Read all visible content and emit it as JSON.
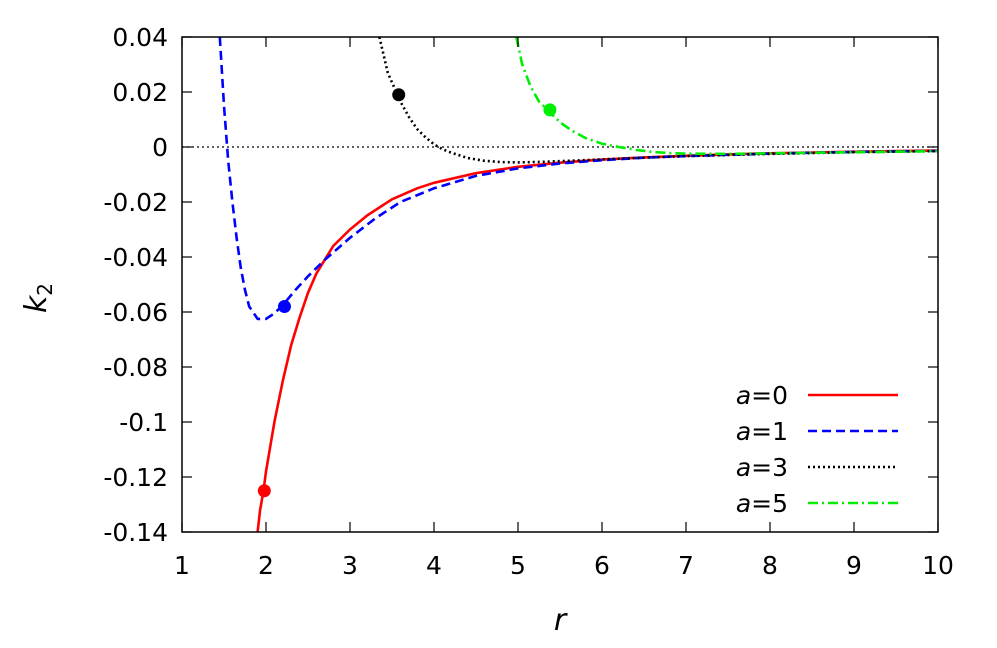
{
  "chart_data": {
    "type": "line",
    "xlabel": "r",
    "ylabel": "k",
    "ylabel_sub": "2",
    "xlim": [
      1,
      10
    ],
    "ylim": [
      -0.14,
      0.04
    ],
    "xticks": [
      "1",
      "2",
      "3",
      "4",
      "5",
      "6",
      "7",
      "8",
      "9",
      "10"
    ],
    "yticks": [
      "0.04",
      "0.02",
      "0",
      "-0.02",
      "-0.04",
      "-0.06",
      "-0.08",
      "-0.1",
      "-0.12",
      "-0.14"
    ],
    "grid": false,
    "legend_position": "bottom-right",
    "zero_line": true,
    "series": [
      {
        "name": "=0",
        "legend_param": "a",
        "color": "#ff0000",
        "dash": "solid",
        "x": [
          1.9,
          1.93,
          1.97,
          2.0,
          2.05,
          2.1,
          2.2,
          2.3,
          2.4,
          2.5,
          2.6,
          2.8,
          3.0,
          3.2,
          3.5,
          3.8,
          4.0,
          4.5,
          5.0,
          5.5,
          6.0,
          6.5,
          7.0,
          7.5,
          8.0,
          8.5,
          9.0,
          9.5,
          10.0
        ],
        "y": [
          -0.14,
          -0.132,
          -0.125,
          -0.118,
          -0.109,
          -0.1,
          -0.085,
          -0.072,
          -0.062,
          -0.053,
          -0.046,
          -0.036,
          -0.03,
          -0.025,
          -0.019,
          -0.015,
          -0.013,
          -0.0095,
          -0.0072,
          -0.0057,
          -0.0046,
          -0.0038,
          -0.0032,
          -0.0027,
          -0.0023,
          -0.002,
          -0.0017,
          -0.0015,
          -0.0013
        ],
        "marker": {
          "x": 1.98,
          "y": -0.125
        }
      },
      {
        "name": "=1",
        "legend_param": "a",
        "color": "#0000ff",
        "dash": "dashed",
        "x": [
          1.45,
          1.5,
          1.55,
          1.6,
          1.65,
          1.7,
          1.75,
          1.8,
          1.9,
          2.0,
          2.1,
          2.2,
          2.35,
          2.5,
          2.7,
          3.0,
          3.3,
          3.6,
          4.0,
          4.5,
          5.0,
          5.5,
          6.0,
          6.5,
          7.0,
          8.0,
          9.0,
          10.0
        ],
        "y": [
          0.04,
          0.015,
          -0.005,
          -0.02,
          -0.033,
          -0.044,
          -0.052,
          -0.058,
          -0.0625,
          -0.0625,
          -0.0605,
          -0.0575,
          -0.052,
          -0.047,
          -0.041,
          -0.033,
          -0.026,
          -0.02,
          -0.015,
          -0.0105,
          -0.0078,
          -0.006,
          -0.0048,
          -0.0039,
          -0.0033,
          -0.0024,
          -0.0018,
          -0.0014
        ],
        "marker": {
          "x": 2.22,
          "y": -0.058
        }
      },
      {
        "name": "=3",
        "legend_param": "a",
        "color": "#000000",
        "dash": "dotted",
        "x": [
          3.35,
          3.45,
          3.55,
          3.6,
          3.7,
          3.8,
          3.9,
          4.0,
          4.1,
          4.2,
          4.4,
          4.6,
          4.8,
          5.0,
          5.3,
          5.6,
          6.0,
          6.5,
          7.0,
          8.0,
          9.0,
          10.0
        ],
        "y": [
          0.04,
          0.027,
          0.02,
          0.0165,
          0.011,
          0.0065,
          0.0035,
          0.001,
          -0.0008,
          -0.002,
          -0.004,
          -0.005,
          -0.0055,
          -0.0056,
          -0.0054,
          -0.005,
          -0.0045,
          -0.0039,
          -0.0033,
          -0.0025,
          -0.0019,
          -0.0015
        ],
        "marker": {
          "x": 3.58,
          "y": 0.019
        }
      },
      {
        "name": "=5",
        "legend_param": "a",
        "color": "#00ee00",
        "dash": "dashdot",
        "x": [
          4.98,
          5.05,
          5.15,
          5.25,
          5.35,
          5.5,
          5.65,
          5.8,
          6.0,
          6.2,
          6.4,
          6.6,
          6.8,
          7.0,
          7.5,
          8.0,
          8.5,
          9.0,
          10.0
        ],
        "y": [
          0.04,
          0.03,
          0.022,
          0.0165,
          0.0135,
          0.009,
          0.0058,
          0.0033,
          0.0012,
          0.0,
          -0.001,
          -0.0018,
          -0.0022,
          -0.0024,
          -0.0025,
          -0.0023,
          -0.0021,
          -0.0019,
          -0.0015
        ],
        "marker": {
          "x": 5.38,
          "y": 0.0135
        }
      }
    ]
  }
}
